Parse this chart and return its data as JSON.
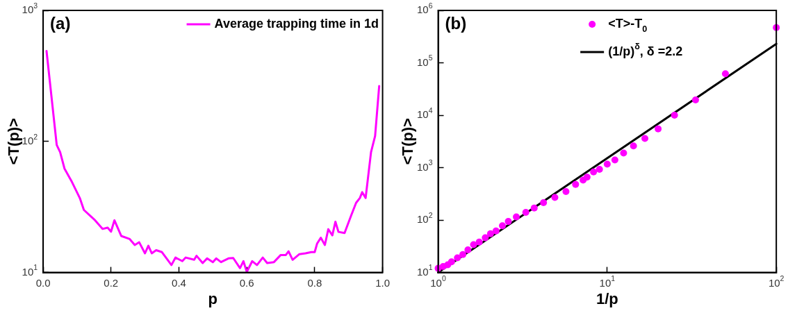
{
  "chart_data": [
    {
      "type": "line",
      "xlabel": "p",
      "ylabel": "<T(p)>",
      "log": true,
      "grid": false,
      "legend": "top right",
      "annotations": [
        "(a)"
      ],
      "xlim": [
        0,
        1
      ],
      "xticks": [
        {
          "value": 0,
          "label": "0.0"
        },
        0.2,
        0.4,
        0.6,
        0.8,
        {
          "value": 1,
          "label": "1.0"
        }
      ],
      "ylim": [
        10,
        1000
      ],
      "yticks": [
        {
          "value": 10,
          "label": "10$^{1}$"
        },
        {
          "value": 100,
          "label": "10$^{2}$"
        },
        {
          "value": 1000,
          "label": "10$^{3}$"
        }
      ],
      "series": [
        {
          "name": "Average trapping time in 1d",
          "color": "#ff00ff",
          "line_style": "solid",
          "x": [
            0.01,
            0.04,
            0.05,
            0.063,
            0.085,
            0.108,
            0.12,
            0.153,
            0.175,
            0.19,
            0.2,
            0.21,
            0.23,
            0.255,
            0.27,
            0.283,
            0.3,
            0.31,
            0.32,
            0.333,
            0.35,
            0.378,
            0.39,
            0.41,
            0.42,
            0.445,
            0.452,
            0.47,
            0.483,
            0.5,
            0.51,
            0.524,
            0.546,
            0.56,
            0.58,
            0.59,
            0.6,
            0.616,
            0.63,
            0.647,
            0.66,
            0.68,
            0.7,
            0.715,
            0.723,
            0.735,
            0.755,
            0.773,
            0.79,
            0.8,
            0.807,
            0.818,
            0.83,
            0.84,
            0.852,
            0.861,
            0.87,
            0.888,
            0.908,
            0.922,
            0.933,
            0.94,
            0.95,
            0.966,
            0.978,
            0.99
          ],
          "values": [
            490,
            94,
            83,
            62,
            49,
            37,
            30,
            25,
            21.5,
            22,
            20.5,
            25,
            19,
            18,
            16.2,
            17,
            14,
            16,
            14,
            14.8,
            14.3,
            11.4,
            13,
            12.2,
            13,
            12.5,
            13.4,
            11.8,
            12.8,
            12,
            12.8,
            12,
            12.8,
            12.9,
            10.8,
            12.2,
            10.1,
            12.2,
            11.4,
            13,
            11.8,
            12,
            13.6,
            13.6,
            14.5,
            12.5,
            13.8,
            14,
            14.3,
            14.3,
            16.6,
            18.4,
            16.2,
            21.4,
            19.2,
            24.4,
            20.4,
            20,
            27.5,
            34,
            37,
            41,
            37,
            83,
            110,
            265
          ]
        }
      ]
    },
    {
      "type": "scatter",
      "xlabel": "1/p",
      "ylabel": "<T(p)>",
      "log": "xy",
      "grid": false,
      "legend": "top right",
      "annotations": [
        "(b)"
      ],
      "xlim": [
        1,
        100
      ],
      "xticks": [
        {
          "value": 1,
          "label": "10$^{0}$"
        },
        {
          "value": 10,
          "label": "10$^{1}$"
        },
        {
          "value": 100,
          "label": "10$^{2}$"
        }
      ],
      "ylim": [
        10,
        1000000
      ],
      "yticks": [
        {
          "value": 10,
          "label": "10$^{1}$"
        },
        {
          "value": 100,
          "label": "10$^{2}$"
        },
        {
          "value": 1000,
          "label": "10$^{3}$"
        },
        {
          "value": 10000,
          "label": "10$^{4}$"
        },
        {
          "value": 100000,
          "label": "10$^{5}$"
        },
        {
          "value": 1000000,
          "label": "10$^{6}$"
        }
      ],
      "series": [
        {
          "name": "<T>-T$_{0}$",
          "color": "#ff00ff",
          "marker": "circle",
          "x": [
            1,
            1.07,
            1.14,
            1.2,
            1.3,
            1.4,
            1.5,
            1.62,
            1.75,
            1.9,
            2.04,
            2.2,
            2.4,
            2.6,
            2.9,
            3.3,
            3.7,
            4.2,
            4.9,
            5.7,
            6.5,
            7.2,
            7.6,
            8.3,
            9,
            10,
            11.1,
            12.5,
            14.3,
            16.7,
            20,
            25,
            33.3,
            50,
            100
          ],
          "values": [
            12,
            13,
            14,
            16,
            19,
            22,
            27,
            34,
            38,
            46,
            55,
            62,
            78,
            94,
            115,
            140,
            170,
            215,
            270,
            350,
            480,
            580,
            660,
            830,
            930,
            1170,
            1400,
            1900,
            2600,
            3600,
            5500,
            10000,
            19600,
            62000,
            470000
          ]
        },
        {
          "type": "line",
          "name": "(1/p)$^{δ}$, δ =2.2",
          "color": "#000000",
          "line_style": "solid",
          "x": [
            1,
            100
          ],
          "values": [
            10,
            230000
          ]
        }
      ]
    }
  ]
}
